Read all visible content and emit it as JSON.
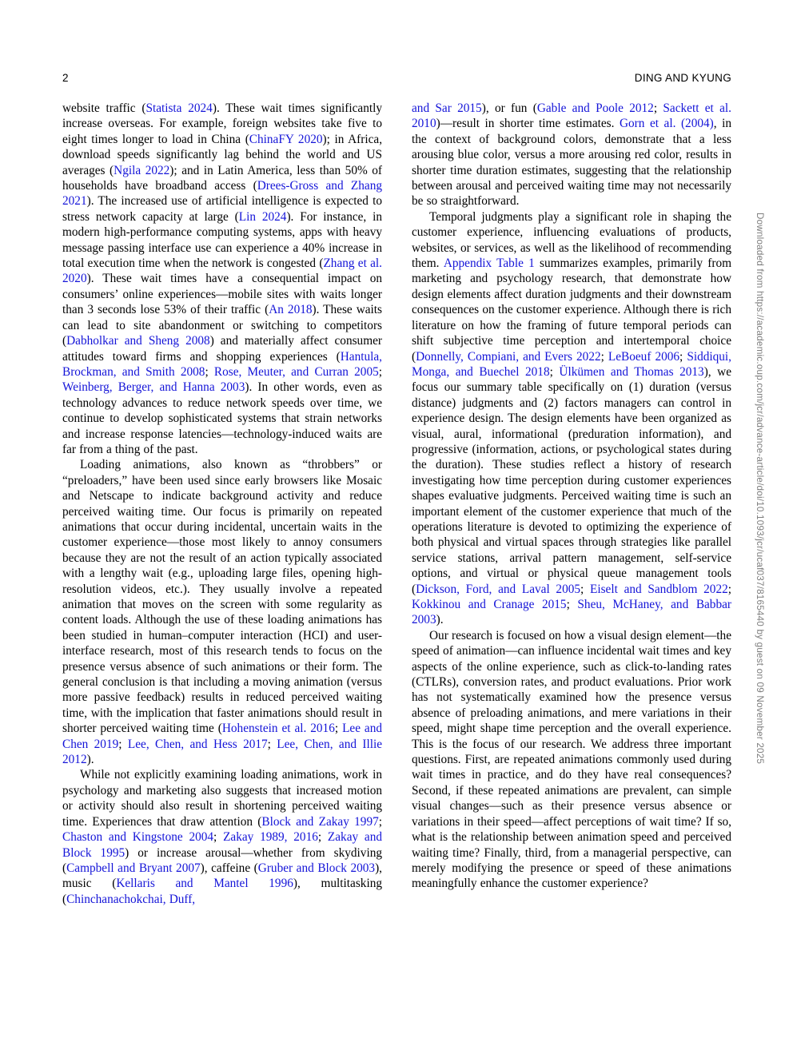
{
  "header": {
    "page_number": "2",
    "running_head": "DING AND KYUNG"
  },
  "watermark_text": "Downloaded from https://academic.oup.com/jcr/advance-article/doi/10.1093/jcr/ucaf037/8165440 by guest on 09 November 2025",
  "colors": {
    "link_blue": "#1414d8",
    "body_text": "#000000",
    "watermark_gray": "#7d7d7d",
    "page_background": "#ffffff"
  },
  "columns": {
    "left": [
      {
        "indent": false,
        "segments": [
          {
            "text": "website traffic ("
          },
          {
            "text": "Statista 2024",
            "cite": true
          },
          {
            "text": "). These wait times significantly increase overseas. For example, foreign websites take five to eight times longer to load in China ("
          },
          {
            "text": "ChinaFY 2020",
            "cite": true
          },
          {
            "text": "); in Africa, download speeds significantly lag behind the world and US averages ("
          },
          {
            "text": "Ngila 2022",
            "cite": true
          },
          {
            "text": "); and in Latin America, less than 50% of households have broadband access ("
          },
          {
            "text": "Drees-Gross and Zhang 2021",
            "cite": true
          },
          {
            "text": "). The increased use of artificial intelligence is expected to stress network capacity at large ("
          },
          {
            "text": "Lin 2024",
            "cite": true
          },
          {
            "text": "). For instance, in modern high-performance computing systems, apps with heavy message passing interface use can experience a 40% increase in total execution time when the network is congested ("
          },
          {
            "text": "Zhang et al. 2020",
            "cite": true
          },
          {
            "text": "). These wait times have a consequential impact on consumers’ online experiences—mobile sites with waits longer than 3 seconds lose 53% of their traffic ("
          },
          {
            "text": "An 2018",
            "cite": true
          },
          {
            "text": "). These waits can lead to site abandonment or switching to competitors ("
          },
          {
            "text": "Dabholkar and Sheng 2008",
            "cite": true
          },
          {
            "text": ") and materially affect consumer attitudes toward firms and shopping experiences ("
          },
          {
            "text": "Hantula, Brockman, and Smith 2008",
            "cite": true
          },
          {
            "text": "; "
          },
          {
            "text": "Rose, Meuter, and Curran 2005",
            "cite": true
          },
          {
            "text": "; "
          },
          {
            "text": "Weinberg, Berger, and Hanna 2003",
            "cite": true
          },
          {
            "text": "). In other words, even as technology advances to reduce network speeds over time, we continue to develop sophisticated systems that strain networks and increase response latencies—technology-induced waits are far from a thing of the past."
          }
        ]
      },
      {
        "indent": true,
        "segments": [
          {
            "text": "Loading animations, also known as “throbbers” or “preloaders,” have been used since early browsers like Mosaic and Netscape to indicate background activity and reduce perceived waiting time. Our focus is primarily on repeated animations that occur during incidental, uncertain waits in the customer experience—those most likely to annoy consumers because they are not the result of an action typically associated with a lengthy wait (e.g., uploading large files, opening high-resolution videos, etc.). They usually involve a repeated animation that moves on the screen with some regularity as content loads. Although the use of these loading animations has been studied in human–computer interaction (HCI) and user-interface research, most of this research tends to focus on the presence versus absence of such animations or their form. The general conclusion is that including a moving animation (versus more passive feedback) results in reduced perceived waiting time, with the implication that faster animations should result in shorter perceived waiting time ("
          },
          {
            "text": "Hohenstein et al. 2016",
            "cite": true
          },
          {
            "text": "; "
          },
          {
            "text": "Lee and Chen 2019",
            "cite": true
          },
          {
            "text": "; "
          },
          {
            "text": "Lee, Chen, and Hess 2017",
            "cite": true
          },
          {
            "text": "; "
          },
          {
            "text": "Lee, Chen, and Illie 2012",
            "cite": true
          },
          {
            "text": ")."
          }
        ]
      },
      {
        "indent": true,
        "segments": [
          {
            "text": "While not explicitly examining loading animations, work in psychology and marketing also suggests that increased motion or activity should also result in shortening perceived waiting time. Experiences that draw attention ("
          },
          {
            "text": "Block and Zakay 1997",
            "cite": true
          },
          {
            "text": "; "
          },
          {
            "text": "Chaston and Kingstone 2004",
            "cite": true
          },
          {
            "text": "; "
          },
          {
            "text": "Zakay 1989, 2016",
            "cite": true
          },
          {
            "text": "; "
          },
          {
            "text": "Zakay and Block 1995",
            "cite": true
          },
          {
            "text": ") or increase arousal—whether from skydiving ("
          },
          {
            "text": "Campbell and Bryant 2007",
            "cite": true
          },
          {
            "text": "), caffeine ("
          },
          {
            "text": "Gruber and Block 2003",
            "cite": true
          },
          {
            "text": "), music ("
          },
          {
            "text": "Kellaris and Mantel 1996",
            "cite": true
          },
          {
            "text": "), multitasking ("
          },
          {
            "text": "Chinchanachokchai, Duff,",
            "cite": true
          }
        ]
      }
    ],
    "right": [
      {
        "indent": false,
        "segments": [
          {
            "text": "and Sar 2015",
            "cite": true
          },
          {
            "text": "), or fun ("
          },
          {
            "text": "Gable and Poole 2012",
            "cite": true
          },
          {
            "text": "; "
          },
          {
            "text": "Sackett et al. 2010",
            "cite": true
          },
          {
            "text": ")—result in shorter time estimates. "
          },
          {
            "text": "Gorn et al. (2004)",
            "cite": true
          },
          {
            "text": ", in the context of background colors, demonstrate that a less arousing blue color, versus a more arousing red color, results in shorter time duration estimates, suggesting that the relationship between arousal and perceived waiting time may not necessarily be so straightforward."
          }
        ]
      },
      {
        "indent": true,
        "segments": [
          {
            "text": "Temporal judgments play a significant role in shaping the customer experience, influencing evaluations of products, websites, or services, as well as the likelihood of recommending them. "
          },
          {
            "text": "Appendix Table 1",
            "cite": true
          },
          {
            "text": " summarizes examples, primarily from marketing and psychology research, that demonstrate how design elements affect duration judgments and their downstream consequences on the customer experience. Although there is rich literature on how the framing of future temporal periods can shift subjective time perception and intertemporal choice ("
          },
          {
            "text": "Donnelly, Compiani, and Evers 2022",
            "cite": true
          },
          {
            "text": "; "
          },
          {
            "text": "LeBoeuf 2006",
            "cite": true
          },
          {
            "text": "; "
          },
          {
            "text": "Siddiqui, Monga, and Buechel 2018",
            "cite": true
          },
          {
            "text": "; "
          },
          {
            "text": "Ülkümen and Thomas 2013",
            "cite": true
          },
          {
            "text": "), we focus our summary table specifically on (1) duration (versus distance) judgments and (2) factors managers can control in experience design. The design elements have been organized as visual, aural, informational (preduration information), and progressive (information, actions, or psychological states during the duration). These studies reflect a history of research investigating how time perception during customer experiences shapes evaluative judgments. Perceived waiting time is such an important element of the customer experience that much of the operations literature is devoted to optimizing the experience of both physical and virtual spaces through strategies like parallel service stations, arrival pattern management, self-service options, and virtual or physical queue management tools ("
          },
          {
            "text": "Dickson, Ford, and Laval 2005",
            "cite": true
          },
          {
            "text": "; "
          },
          {
            "text": "Eiselt and Sandblom 2022",
            "cite": true
          },
          {
            "text": "; "
          },
          {
            "text": "Kokkinou and Cranage 2015",
            "cite": true
          },
          {
            "text": "; "
          },
          {
            "text": "Sheu, McHaney, and Babbar 2003",
            "cite": true
          },
          {
            "text": ")."
          }
        ]
      },
      {
        "indent": true,
        "segments": [
          {
            "text": "Our research is focused on how a visual design element—the speed of animation—can influence incidental wait times and key aspects of the online experience, such as click-to-landing rates (CTLRs), conversion rates, and product evaluations. Prior work has not systematically examined how the presence versus absence of preloading animations, and mere variations in their speed, might shape time perception and the overall experience. This is the focus of our research. We address three important questions. First, are repeated animations commonly used during wait times in practice, and do they have real consequences? Second, if these repeated animations are prevalent, can simple visual changes—such as their presence versus absence or variations in their speed—affect perceptions of wait time? If so, what is the relationship between animation speed and perceived waiting time? Finally, third, from a managerial perspective, can merely modifying the presence or speed of these animations meaningfully enhance the customer experience?"
          }
        ]
      }
    ]
  }
}
